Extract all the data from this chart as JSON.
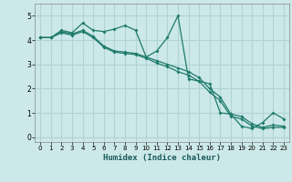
{
  "xlabel": "Humidex (Indice chaleur)",
  "bg_color": "#cce8e8",
  "grid_color": "#b0d4d4",
  "line_color": "#1e7b6a",
  "xlim": [
    -0.5,
    23.5
  ],
  "ylim": [
    -0.2,
    5.5
  ],
  "xticks": [
    0,
    1,
    2,
    3,
    4,
    5,
    6,
    7,
    8,
    9,
    10,
    11,
    12,
    13,
    14,
    15,
    16,
    17,
    18,
    19,
    20,
    21,
    22,
    23
  ],
  "yticks": [
    0,
    1,
    2,
    3,
    4,
    5
  ],
  "line1_x": [
    0,
    1,
    2,
    3,
    4,
    5,
    6,
    7,
    8,
    9,
    10,
    11,
    12,
    13,
    14,
    15,
    16,
    17,
    18,
    19,
    20,
    21,
    22,
    23
  ],
  "line1_y": [
    4.1,
    4.1,
    4.4,
    4.3,
    4.7,
    4.4,
    4.35,
    4.45,
    4.6,
    4.4,
    3.3,
    3.55,
    4.1,
    5.0,
    2.4,
    2.3,
    2.2,
    1.0,
    0.95,
    0.45,
    0.35,
    0.6,
    1.0,
    0.75
  ],
  "line2_x": [
    0,
    1,
    2,
    3,
    4,
    5,
    6,
    7,
    8,
    9,
    10,
    11,
    12,
    13,
    14,
    15,
    16,
    17,
    18,
    19,
    20,
    21,
    22,
    23
  ],
  "line2_y": [
    4.1,
    4.1,
    4.35,
    4.25,
    4.4,
    4.15,
    3.75,
    3.55,
    3.5,
    3.45,
    3.3,
    3.15,
    3.0,
    2.85,
    2.7,
    2.45,
    2.0,
    1.65,
    0.95,
    0.85,
    0.55,
    0.4,
    0.5,
    0.45
  ],
  "line3_x": [
    0,
    1,
    2,
    3,
    4,
    5,
    6,
    7,
    8,
    9,
    10,
    11,
    12,
    13,
    14,
    15,
    16,
    17,
    18,
    19,
    20,
    21,
    22,
    23
  ],
  "line3_y": [
    4.1,
    4.1,
    4.3,
    4.2,
    4.35,
    4.1,
    3.7,
    3.5,
    3.45,
    3.4,
    3.25,
    3.05,
    2.9,
    2.7,
    2.55,
    2.3,
    1.85,
    1.5,
    0.85,
    0.75,
    0.45,
    0.35,
    0.4,
    0.4
  ]
}
